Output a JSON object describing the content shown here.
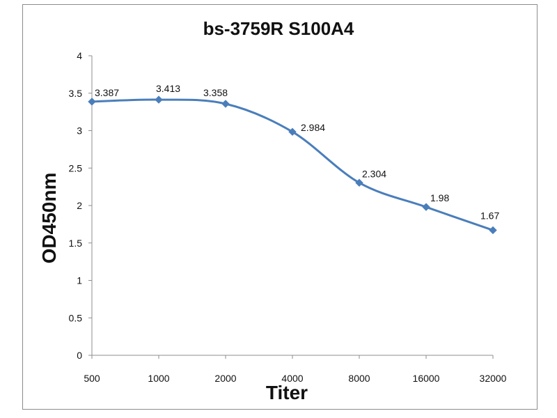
{
  "chart_data": {
    "type": "line",
    "title": "bs-3759R S100A4",
    "xlabel": "Titer",
    "ylabel": "OD450nm",
    "categories": [
      "500",
      "1000",
      "2000",
      "4000",
      "8000",
      "16000",
      "32000"
    ],
    "series": [
      {
        "values": [
          3.387,
          3.413,
          3.358,
          2.984,
          2.304,
          1.98,
          1.67
        ],
        "color": "#4a7ebb"
      }
    ],
    "data_labels": [
      "3.387",
      "3.413",
      "3.358",
      "2.984",
      "2.304",
      "1.98",
      "1.67"
    ],
    "ylim": [
      0,
      4
    ],
    "yticks": [
      "0",
      "0.5",
      "1",
      "1.5",
      "2",
      "2.5",
      "3",
      "3.5",
      "4"
    ],
    "grid": false,
    "smooth": true,
    "marker": "diamond",
    "colors": {
      "line": "#4a7ebb",
      "axis": "#8c8c8c",
      "frame": "#8c8c8c"
    }
  }
}
